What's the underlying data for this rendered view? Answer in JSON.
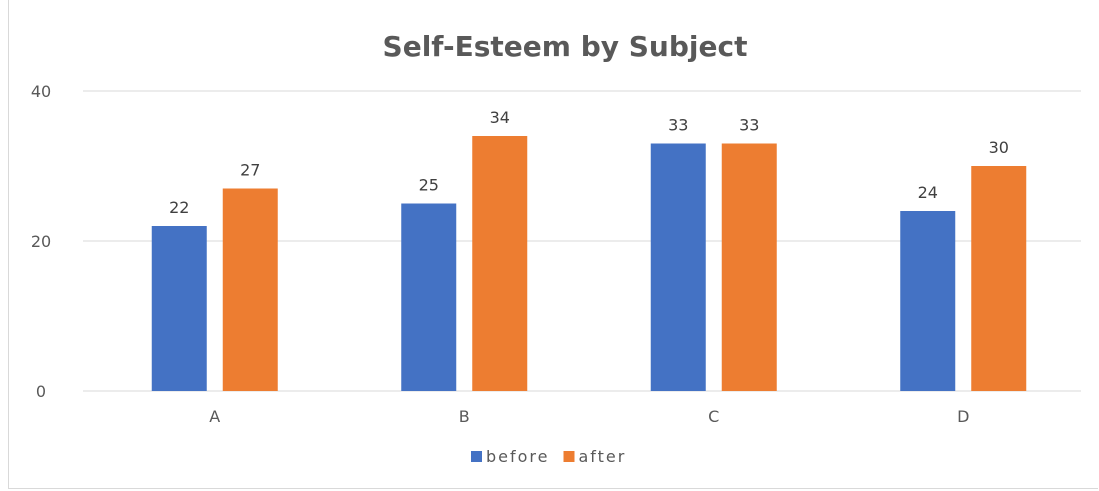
{
  "chart_data": {
    "type": "bar",
    "title": "Self-Esteem by Subject",
    "xlabel": "",
    "ylabel": "",
    "categories": [
      "A",
      "B",
      "C",
      "D"
    ],
    "series": [
      {
        "name": "before",
        "values": [
          22,
          25,
          33,
          24
        ],
        "color": "#4472c4"
      },
      {
        "name": "after",
        "values": [
          27,
          34,
          33,
          30
        ],
        "color": "#ed7d31"
      }
    ],
    "ylim": [
      0,
      40
    ],
    "yticks": [
      0,
      20,
      40
    ],
    "grid": true,
    "data_labels": true,
    "legend_position": "bottom"
  }
}
